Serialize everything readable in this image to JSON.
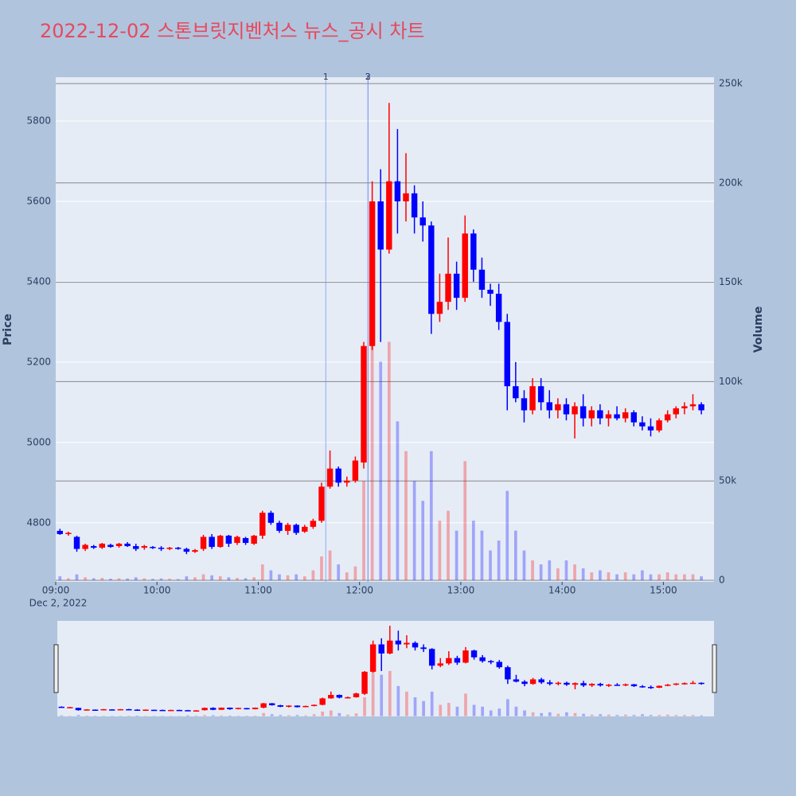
{
  "chart_data": {
    "type": "candlestick",
    "title": "2022-12-02 스톤브릿지벤처스 뉴스_공시 차트",
    "y_label": "Price",
    "y2_label": "Volume",
    "increasing_color": "#ff0000",
    "decreasing_color": "#0000ff",
    "xlim": [
      "2022-12-02 09:00",
      "2022-12-02 15:30"
    ],
    "xticks": [
      {
        "value": "2022-12-02 09:00",
        "label": "09:00"
      },
      {
        "value": "2022-12-02 10:00",
        "label": "10:00"
      },
      {
        "value": "2022-12-02 11:00",
        "label": "11:00"
      },
      {
        "value": "2022-12-02 12:00",
        "label": "12:00"
      },
      {
        "value": "2022-12-02 13:00",
        "label": "13:00"
      },
      {
        "value": "2022-12-02 14:00",
        "label": "14:00"
      },
      {
        "value": "2022-12-02 15:00",
        "label": "15:00"
      }
    ],
    "x_sublabel": "Dec 2, 2022",
    "ylim": [
      4653,
      5909
    ],
    "yticks": [
      4800,
      5000,
      5200,
      5400,
      5600,
      5800
    ],
    "y2lim": [
      -800,
      253200
    ],
    "y2ticks": [
      0,
      {
        "value": 50000,
        "label": "50k"
      },
      {
        "value": 100000,
        "label": "100k"
      },
      {
        "value": 150000,
        "label": "150k"
      },
      {
        "value": 200000,
        "label": "200k"
      },
      {
        "value": 250000,
        "label": "250k"
      }
    ],
    "markers": [
      {
        "x": "2022-12-02 11:40",
        "label": "1"
      },
      {
        "x": "2022-12-02 12:05",
        "label": "2"
      },
      {
        "x": "2022-12-02 12:05",
        "label": "3"
      }
    ],
    "x": [
      "2022-12-02 09:00",
      "2022-12-02 09:05",
      "2022-12-02 09:10",
      "2022-12-02 09:15",
      "2022-12-02 09:20",
      "2022-12-02 09:25",
      "2022-12-02 09:30",
      "2022-12-02 09:35",
      "2022-12-02 09:40",
      "2022-12-02 09:45",
      "2022-12-02 09:50",
      "2022-12-02 09:55",
      "2022-12-02 10:00",
      "2022-12-02 10:05",
      "2022-12-02 10:10",
      "2022-12-02 10:15",
      "2022-12-02 10:20",
      "2022-12-02 10:25",
      "2022-12-02 10:30",
      "2022-12-02 10:35",
      "2022-12-02 10:40",
      "2022-12-02 10:45",
      "2022-12-02 10:50",
      "2022-12-02 10:55",
      "2022-12-02 11:00",
      "2022-12-02 11:05",
      "2022-12-02 11:10",
      "2022-12-02 11:15",
      "2022-12-02 11:20",
      "2022-12-02 11:25",
      "2022-12-02 11:30",
      "2022-12-02 11:35",
      "2022-12-02 11:40",
      "2022-12-02 11:45",
      "2022-12-02 11:50",
      "2022-12-02 11:55",
      "2022-12-02 12:00",
      "2022-12-02 12:05",
      "2022-12-02 12:10",
      "2022-12-02 12:15",
      "2022-12-02 12:20",
      "2022-12-02 12:25",
      "2022-12-02 12:30",
      "2022-12-02 12:35",
      "2022-12-02 12:40",
      "2022-12-02 12:45",
      "2022-12-02 12:50",
      "2022-12-02 12:55",
      "2022-12-02 13:00",
      "2022-12-02 13:05",
      "2022-12-02 13:10",
      "2022-12-02 13:15",
      "2022-12-02 13:20",
      "2022-12-02 13:25",
      "2022-12-02 13:30",
      "2022-12-02 13:35",
      "2022-12-02 13:40",
      "2022-12-02 13:45",
      "2022-12-02 13:50",
      "2022-12-02 13:55",
      "2022-12-02 14:00",
      "2022-12-02 14:05",
      "2022-12-02 14:10",
      "2022-12-02 14:15",
      "2022-12-02 14:20",
      "2022-12-02 14:25",
      "2022-12-02 14:30",
      "2022-12-02 14:35",
      "2022-12-02 14:40",
      "2022-12-02 14:45",
      "2022-12-02 14:50",
      "2022-12-02 14:55",
      "2022-12-02 15:00",
      "2022-12-02 15:05",
      "2022-12-02 15:10",
      "2022-12-02 15:15",
      "2022-12-02 15:20"
    ],
    "open": [
      4780,
      4772,
      4765,
      4735,
      4742,
      4738,
      4745,
      4742,
      4748,
      4742,
      4738,
      4740,
      4738,
      4735,
      4738,
      4735,
      4728,
      4735,
      4765,
      4740,
      4768,
      4750,
      4762,
      4748,
      4768,
      4825,
      4800,
      4780,
      4795,
      4778,
      4790,
      4805,
      4890,
      4935,
      4900,
      4905,
      4950,
      5240,
      5600,
      5480,
      5650,
      5600,
      5620,
      5560,
      5540,
      5320,
      5350,
      5420,
      5360,
      5520,
      5430,
      5380,
      5370,
      5300,
      5140,
      5110,
      5080,
      5140,
      5100,
      5080,
      5095,
      5070,
      5090,
      5060,
      5080,
      5060,
      5070,
      5060,
      5075,
      5050,
      5040,
      5030,
      5055,
      5070,
      5085,
      5090,
      5095
    ],
    "high": [
      4785,
      4778,
      4768,
      4748,
      4745,
      4750,
      4748,
      4750,
      4752,
      4748,
      4745,
      4742,
      4742,
      4740,
      4740,
      4738,
      4735,
      4770,
      4772,
      4770,
      4770,
      4768,
      4765,
      4770,
      4830,
      4830,
      4805,
      4800,
      4798,
      4795,
      4810,
      4900,
      4980,
      4940,
      4915,
      4965,
      5250,
      5650,
      5680,
      5845,
      5780,
      5720,
      5640,
      5600,
      5550,
      5420,
      5510,
      5450,
      5565,
      5530,
      5460,
      5395,
      5395,
      5320,
      5200,
      5130,
      5160,
      5160,
      5130,
      5110,
      5110,
      5100,
      5120,
      5090,
      5095,
      5080,
      5090,
      5085,
      5080,
      5065,
      5060,
      5060,
      5080,
      5090,
      5100,
      5120,
      5100
    ],
    "low": [
      4770,
      4768,
      4728,
      4730,
      4735,
      4735,
      4738,
      4738,
      4740,
      4730,
      4733,
      4735,
      4730,
      4732,
      4733,
      4722,
      4725,
      4730,
      4735,
      4738,
      4740,
      4745,
      4745,
      4745,
      4760,
      4795,
      4775,
      4770,
      4770,
      4775,
      4785,
      4800,
      4885,
      4890,
      4890,
      4900,
      4935,
      5230,
      5250,
      5470,
      5520,
      5550,
      5520,
      5500,
      5270,
      5300,
      5330,
      5330,
      5350,
      5400,
      5360,
      5340,
      5280,
      5080,
      5100,
      5050,
      5070,
      5080,
      5060,
      5060,
      5055,
      5010,
      5040,
      5040,
      5045,
      5040,
      5055,
      5050,
      5040,
      5030,
      5015,
      5025,
      5050,
      5060,
      5070,
      5080,
      5070
    ],
    "close": [
      4772,
      4775,
      4735,
      4745,
      4738,
      4748,
      4740,
      4748,
      4742,
      4735,
      4742,
      4738,
      4735,
      4738,
      4735,
      4728,
      4732,
      4765,
      4740,
      4768,
      4748,
      4765,
      4750,
      4768,
      4825,
      4800,
      4780,
      4795,
      4775,
      4790,
      4805,
      4890,
      4935,
      4900,
      4905,
      4955,
      5240,
      5600,
      5480,
      5650,
      5600,
      5620,
      5560,
      5540,
      5320,
      5350,
      5420,
      5360,
      5520,
      5430,
      5380,
      5370,
      5300,
      5140,
      5110,
      5080,
      5140,
      5100,
      5080,
      5095,
      5070,
      5090,
      5060,
      5080,
      5060,
      5070,
      5060,
      5075,
      5050,
      5040,
      5030,
      5055,
      5070,
      5085,
      5090,
      5095,
      5080
    ],
    "volume": [
      2000,
      1000,
      3000,
      1500,
      1000,
      1200,
      800,
      1000,
      900,
      1500,
      1000,
      700,
      900,
      800,
      600,
      2000,
      1500,
      3000,
      2500,
      2000,
      1500,
      1200,
      1000,
      1500,
      8000,
      5000,
      3000,
      2500,
      3000,
      2000,
      5000,
      12000,
      15000,
      8000,
      4000,
      7000,
      50000,
      135000,
      110000,
      120000,
      80000,
      65000,
      50000,
      40000,
      65000,
      30000,
      35000,
      25000,
      60000,
      30000,
      25000,
      15000,
      20000,
      45000,
      25000,
      15000,
      10000,
      8000,
      10000,
      6000,
      10000,
      8000,
      6000,
      4000,
      5000,
      4000,
      3000,
      4000,
      3000,
      5000,
      3000,
      3000,
      4000,
      3000,
      3000,
      3000,
      2000
    ]
  }
}
